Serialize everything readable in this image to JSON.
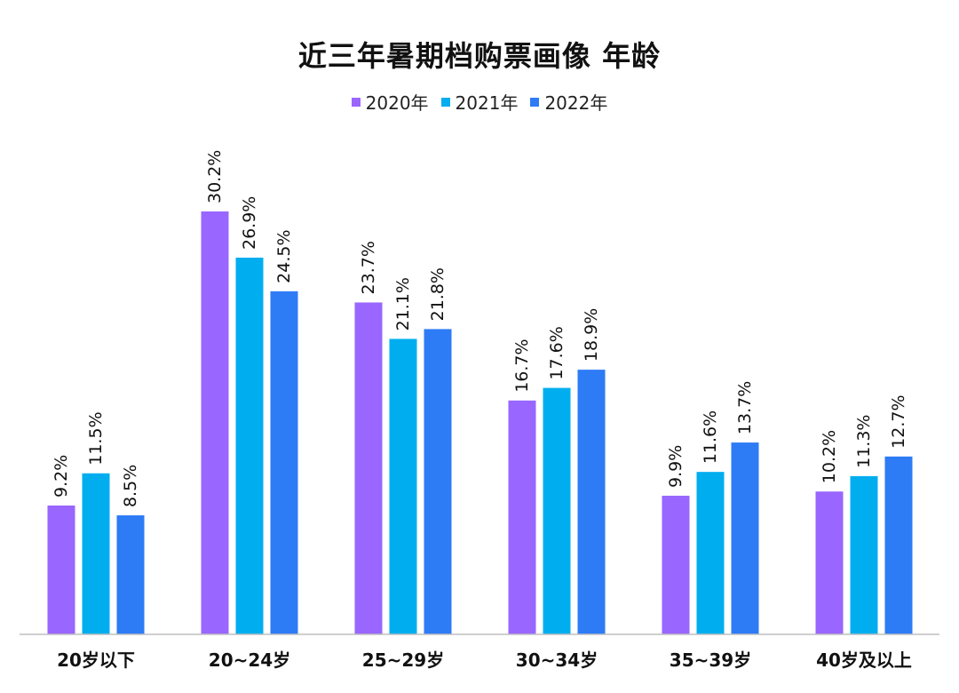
{
  "chart_data": {
    "type": "bar",
    "title": "近三年暑期档购票画像 年龄",
    "categories": [
      "20岁以下",
      "20~24岁",
      "25~29岁",
      "30~34岁",
      "35~39岁",
      "40岁及以上"
    ],
    "series": [
      {
        "name": "2020年",
        "color": "#9966FF",
        "values": [
          9.2,
          30.2,
          23.7,
          16.7,
          9.9,
          10.2
        ],
        "labels": [
          "9.2%",
          "30.2%",
          "23.7%",
          "16.7%",
          "9.9%",
          "10.2%"
        ]
      },
      {
        "name": "2021年",
        "color": "#00AEEF",
        "values": [
          11.5,
          26.9,
          21.1,
          17.6,
          11.6,
          11.3
        ],
        "labels": [
          "11.5%",
          "26.9%",
          "21.1%",
          "17.6%",
          "11.6%",
          "11.3%"
        ]
      },
      {
        "name": "2022年",
        "color": "#2E7BF6",
        "values": [
          8.5,
          24.5,
          21.8,
          18.9,
          13.7,
          12.7
        ],
        "labels": [
          "8.5%",
          "24.5%",
          "21.8%",
          "18.9%",
          "13.7%",
          "12.7%"
        ]
      }
    ],
    "ylim": [
      0,
      30.2
    ],
    "grid": false,
    "legend": "top-center",
    "xlabel": "",
    "ylabel": ""
  }
}
